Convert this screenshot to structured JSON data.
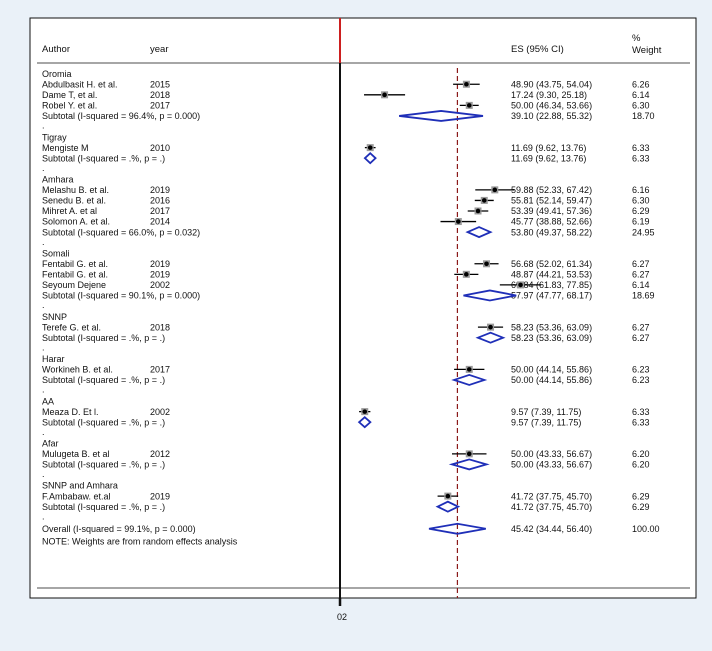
{
  "chart_data": {
    "type": "forest",
    "title": "",
    "headers": {
      "author": "Author",
      "year": "year",
      "es": "ES (95% CI)",
      "weight_line1": "%",
      "weight_line2": "Weight"
    },
    "reference_line_label": "0",
    "x_axis_label": "02",
    "null_value": 0,
    "overall_estimate": 45.42,
    "xlim": [
      0,
      78
    ],
    "groups": [
      {
        "name": "Oromia",
        "studies": [
          {
            "author": "Abdulbasit H. et al.",
            "year": "2015",
            "es": 48.9,
            "lo": 43.75,
            "hi": 54.04,
            "es_text": "48.90 (43.75, 54.04)",
            "weight": "6.26"
          },
          {
            "author": "Dame T, et al.",
            "year": "2018",
            "es": 17.24,
            "lo": 9.3,
            "hi": 25.18,
            "es_text": "17.24 (9.30, 25.18)",
            "weight": "6.14"
          },
          {
            "author": "Robel Y. et al.",
            "year": "2017",
            "es": 50.0,
            "lo": 46.34,
            "hi": 53.66,
            "es_text": "50.00 (46.34, 53.66)",
            "weight": "6.30"
          }
        ],
        "subtotal": {
          "label": "Subtotal  (I-squared = 96.4%, p = 0.000)",
          "es": 39.1,
          "lo": 22.88,
          "hi": 55.32,
          "es_text": "39.10 (22.88, 55.32)",
          "weight": "18.70"
        }
      },
      {
        "name": "Tigray",
        "studies": [
          {
            "author": "Mengiste M",
            "year": "2010",
            "es": 11.69,
            "lo": 9.62,
            "hi": 13.76,
            "es_text": "11.69 (9.62, 13.76)",
            "weight": "6.33"
          }
        ],
        "subtotal": {
          "label": "Subtotal  (I-squared = .%, p = .)",
          "es": 11.69,
          "lo": 9.62,
          "hi": 13.76,
          "es_text": "11.69 (9.62, 13.76)",
          "weight": "6.33"
        }
      },
      {
        "name": "Amhara",
        "studies": [
          {
            "author": "Melashu B. et al.",
            "year": "2019",
            "es": 59.88,
            "lo": 52.33,
            "hi": 67.42,
            "es_text": "59.88 (52.33, 67.42)",
            "weight": "6.16"
          },
          {
            "author": "Senedu B. et al.",
            "year": "2016",
            "es": 55.81,
            "lo": 52.14,
            "hi": 59.47,
            "es_text": "55.81 (52.14, 59.47)",
            "weight": "6.30"
          },
          {
            "author": "Mihret A. et al",
            "year": "2017",
            "es": 53.39,
            "lo": 49.41,
            "hi": 57.36,
            "es_text": "53.39 (49.41, 57.36)",
            "weight": "6.29"
          },
          {
            "author": "Solomon A. et al.",
            "year": "2014",
            "es": 45.77,
            "lo": 38.88,
            "hi": 52.66,
            "es_text": "45.77 (38.88, 52.66)",
            "weight": "6.19"
          }
        ],
        "subtotal": {
          "label": "Subtotal  (I-squared = 66.0%, p = 0.032)",
          "es": 53.8,
          "lo": 49.37,
          "hi": 58.22,
          "es_text": "53.80 (49.37, 58.22)",
          "weight": "24.95"
        }
      },
      {
        "name": "Somali",
        "studies": [
          {
            "author": "Fentabil G. et al.",
            "year": "2019",
            "es": 56.68,
            "lo": 52.02,
            "hi": 61.34,
            "es_text": "56.68 (52.02, 61.34)",
            "weight": "6.27"
          },
          {
            "author": "Fentabil G. et al.",
            "year": "2019",
            "es": 48.87,
            "lo": 44.21,
            "hi": 53.53,
            "es_text": "48.87 (44.21, 53.53)",
            "weight": "6.27"
          },
          {
            "author": "Seyoum Dejene",
            "year": "2002",
            "es": 69.84,
            "lo": 61.83,
            "hi": 77.85,
            "es_text": "69.84 (61.83, 77.85)",
            "weight": "6.14"
          }
        ],
        "subtotal": {
          "label": "Subtotal  (I-squared = 90.1%, p = 0.000)",
          "es": 57.97,
          "lo": 47.77,
          "hi": 68.17,
          "es_text": "57.97 (47.77, 68.17)",
          "weight": "18.69"
        }
      },
      {
        "name": "SNNP",
        "studies": [
          {
            "author": "Terefe G. et al.",
            "year": "2018",
            "es": 58.23,
            "lo": 53.36,
            "hi": 63.09,
            "es_text": "58.23 (53.36, 63.09)",
            "weight": "6.27"
          }
        ],
        "subtotal": {
          "label": "Subtotal  (I-squared = .%, p = .)",
          "es": 58.23,
          "lo": 53.36,
          "hi": 63.09,
          "es_text": "58.23 (53.36, 63.09)",
          "weight": "6.27"
        }
      },
      {
        "name": "Harar",
        "studies": [
          {
            "author": "Workineh B. et al.",
            "year": "2017",
            "es": 50.0,
            "lo": 44.14,
            "hi": 55.86,
            "es_text": "50.00 (44.14, 55.86)",
            "weight": "6.23"
          }
        ],
        "subtotal": {
          "label": "Subtotal  (I-squared = .%, p = .)",
          "es": 50.0,
          "lo": 44.14,
          "hi": 55.86,
          "es_text": "50.00 (44.14, 55.86)",
          "weight": "6.23"
        }
      },
      {
        "name": "AA",
        "studies": [
          {
            "author": "Meaza D. Et l.",
            "year": "2002",
            "es": 9.57,
            "lo": 7.39,
            "hi": 11.75,
            "es_text": "9.57 (7.39, 11.75)",
            "weight": "6.33"
          }
        ],
        "subtotal": {
          "label": "Subtotal  (I-squared = .%, p = .)",
          "es": 9.57,
          "lo": 7.39,
          "hi": 11.75,
          "es_text": "9.57 (7.39, 11.75)",
          "weight": "6.33"
        }
      },
      {
        "name": "Afar",
        "studies": [
          {
            "author": "Mulugeta B. et al",
            "year": "2012",
            "es": 50.0,
            "lo": 43.33,
            "hi": 56.67,
            "es_text": "50.00 (43.33, 56.67)",
            "weight": "6.20"
          }
        ],
        "subtotal": {
          "label": "Subtotal  (I-squared = .%, p = .)",
          "es": 50.0,
          "lo": 43.33,
          "hi": 56.67,
          "es_text": "50.00 (43.33, 56.67)",
          "weight": "6.20"
        }
      },
      {
        "name": "SNNP and Amhara",
        "studies": [
          {
            "author": "F.Ambabaw.  et.al",
            "year": "2019",
            "es": 41.72,
            "lo": 37.75,
            "hi": 45.7,
            "es_text": "41.72 (37.75, 45.70)",
            "weight": "6.29"
          }
        ],
        "subtotal": {
          "label": "Subtotal  (I-squared = .%, p = .)",
          "es": 41.72,
          "lo": 37.75,
          "hi": 45.7,
          "es_text": "41.72 (37.75, 45.70)",
          "weight": "6.29"
        }
      }
    ],
    "overall": {
      "label": "Overall  (I-squared = 99.1%, p = 0.000)",
      "es": 45.42,
      "lo": 34.44,
      "hi": 56.4,
      "es_text": "45.42 (34.44, 56.40)",
      "weight": "100.00"
    },
    "note": "NOTE: Weights are from random effects analysis",
    "colors": {
      "ci_line": "#000000",
      "point": "#000000",
      "diamond": "#1f2fb8",
      "null_line": "#cc1f1f",
      "overall_line": "#8b1a1a"
    }
  }
}
